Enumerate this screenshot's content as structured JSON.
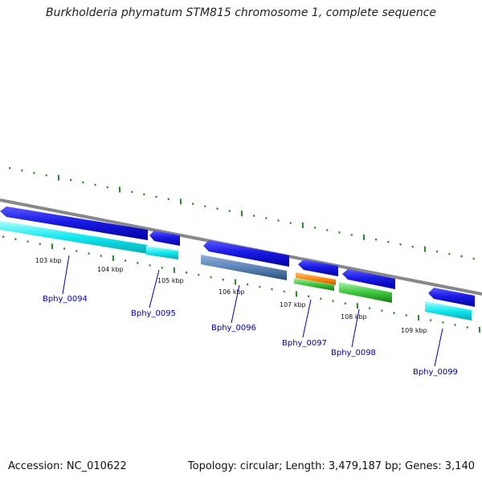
{
  "header": {
    "title": "Burkholderia phymatum STM815 chromosome 1, complete sequence"
  },
  "footer": {
    "accession": "Accession: NC_010622",
    "topology": "Topology: circular; Length: 3,479,187 bp; Genes: 3,140"
  },
  "ticks": [
    {
      "label": "103 kbp"
    },
    {
      "label": "104 kbp"
    },
    {
      "label": "105 kbp"
    },
    {
      "label": "106 kbp"
    },
    {
      "label": "107 kbp"
    },
    {
      "label": "108 kbp"
    },
    {
      "label": "109 kbp"
    }
  ],
  "genes": [
    {
      "label": "Bphy_0094",
      "strand": "reverse"
    },
    {
      "label": "Bphy_0095",
      "strand": "reverse"
    },
    {
      "label": "Bphy_0096",
      "strand": "forward"
    },
    {
      "label": "Bphy_0097",
      "strand": "reverse"
    },
    {
      "label": "Bphy_0098",
      "strand": "reverse"
    },
    {
      "label": "Bphy_0099",
      "strand": "reverse"
    }
  ],
  "colors": {
    "backbone": "#888888",
    "gene_arrow": "#1010dd",
    "tick": "#228822",
    "label_link": "#0000aa",
    "cds_cyan": "#11e6ee",
    "cds_steelblue": "#5b84b8",
    "cds_orange": "#ff8c10",
    "cds_green": "#3ec83e"
  }
}
